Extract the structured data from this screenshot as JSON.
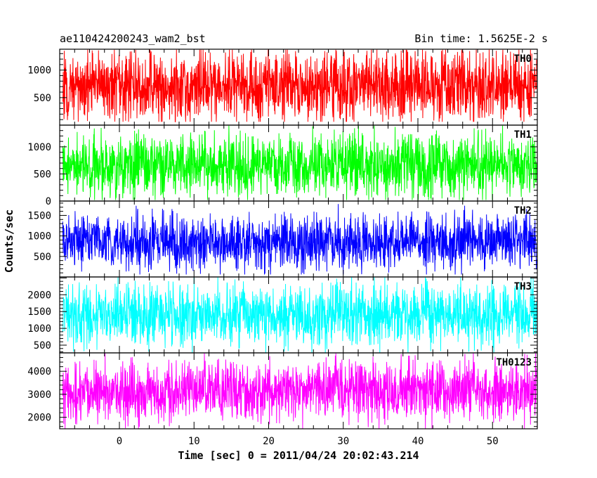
{
  "chart_data": {
    "type": "line",
    "title_left": "ae110424200243_wam2_bst",
    "title_right": "Bin time: 1.5625E-2 s",
    "xlabel": "Time [sec] 0 = 2011/04/24 20:02:43.214",
    "ylabel": "Counts/sec",
    "xlim": [
      -8,
      56
    ],
    "x_ticks": [
      0,
      10,
      20,
      30,
      40,
      50
    ],
    "x_tick_labels": [
      "0",
      "10",
      "20",
      "30",
      "40",
      "50"
    ],
    "data_range": [
      -7.6,
      55.9
    ],
    "grid": false,
    "panels": [
      {
        "name": "TH0",
        "color": "#ff0000",
        "ylim": [
          0,
          1380
        ],
        "yticks": [
          500,
          1000
        ],
        "ytick_labels": [
          "500",
          "1000"
        ],
        "mean": 700,
        "spread": 330,
        "min_value": 60,
        "max_value": 1370
      },
      {
        "name": "TH1",
        "color": "#00ff00",
        "ylim": [
          0,
          1400
        ],
        "yticks": [
          0,
          500,
          1000
        ],
        "ytick_labels": [
          "0",
          "500",
          "1000"
        ],
        "mean": 650,
        "spread": 300,
        "min_value": 20,
        "max_value": 1390
      },
      {
        "name": "TH2",
        "color": "#0000ff",
        "ylim": [
          0,
          1850
        ],
        "yticks": [
          500,
          1000,
          1500
        ],
        "ytick_labels": [
          "500",
          "1000",
          "1500"
        ],
        "mean": 850,
        "spread": 330,
        "min_value": 60,
        "max_value": 1840
      },
      {
        "name": "TH3",
        "color": "#00ffff",
        "ylim": [
          270,
          2530
        ],
        "yticks": [
          500,
          1000,
          1500,
          2000
        ],
        "ytick_labels": [
          "500",
          "1000",
          "1500",
          "2000"
        ],
        "mean": 1400,
        "spread": 450,
        "min_value": 280,
        "max_value": 2520
      },
      {
        "name": "TH0123",
        "color": "#ff00ff",
        "ylim": [
          1500,
          4800
        ],
        "yticks": [
          2000,
          3000,
          4000
        ],
        "ytick_labels": [
          "2000",
          "3000",
          "4000"
        ],
        "mean": 3150,
        "spread": 650,
        "min_value": 1510,
        "max_value": 4780
      }
    ]
  }
}
